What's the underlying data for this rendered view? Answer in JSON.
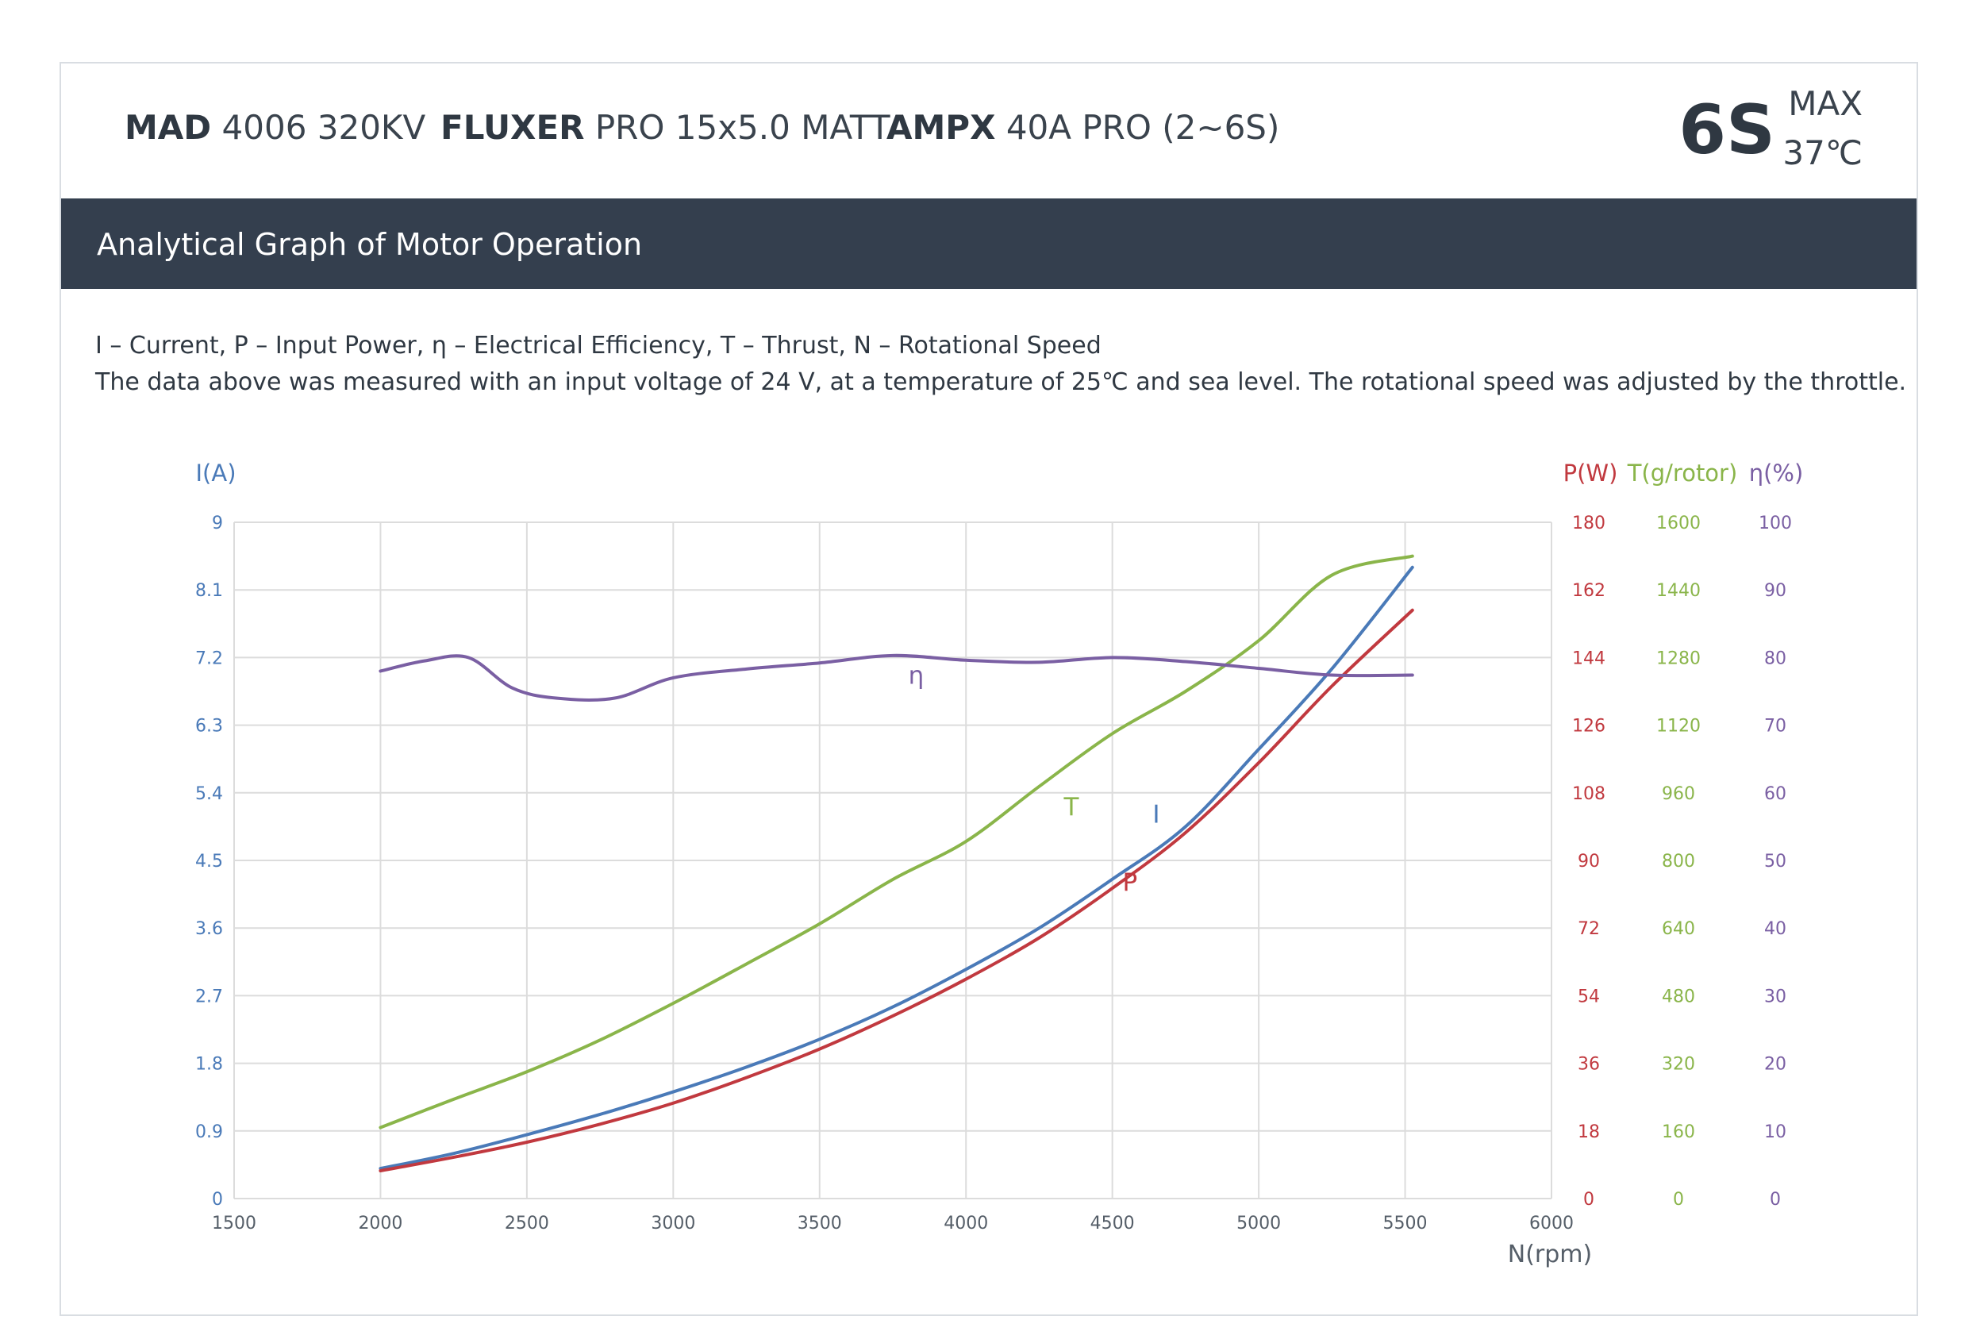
{
  "header": {
    "items": [
      {
        "brand": "MAD",
        "model": "4006 320KV"
      },
      {
        "brand": "FLUXER",
        "model": "PRO 15x5.0 MATT"
      },
      {
        "brand": "AMPX",
        "model": "40A PRO (2~6S)"
      }
    ],
    "cells": "6S",
    "max_label": "MAX",
    "max_value": "37℃"
  },
  "band": {
    "title": "Analytical Graph of Motor Operation"
  },
  "description": {
    "line1": "I – Current, P – Input Power, η – Electrical Efficiency, T – Thrust,   N – Rotational Speed",
    "line2": "The data above was measured with an input voltage of 24 V, at a temperature of 25℃ and sea level. The rotational speed was adjusted by the throttle."
  },
  "colors": {
    "current": "#4a7ab8",
    "power": "#c1393f",
    "thrust": "#8ab54a",
    "efficiency": "#7a5fa3",
    "grid": "#dcdcdc",
    "axis_text": "#555e68"
  },
  "chart_data": {
    "type": "line",
    "xlabel": "N(rpm)",
    "xlim": [
      1500,
      6000
    ],
    "x_ticks": [
      "1500",
      "2000",
      "2500",
      "3000",
      "3500",
      "4000",
      "4500",
      "5000",
      "5500",
      "6000"
    ],
    "grid": true,
    "axes": {
      "left": {
        "label": "I(A)",
        "ticks": [
          "0",
          "0.9",
          "1.8",
          "2.7",
          "3.6",
          "4.5",
          "5.4",
          "6.3",
          "7.2",
          "8.1",
          "9"
        ],
        "range": [
          0,
          9
        ]
      },
      "power": {
        "label": "P(W)",
        "ticks": [
          "0",
          "18",
          "36",
          "54",
          "72",
          "90",
          "108",
          "126",
          "144",
          "162",
          "180"
        ],
        "range": [
          0,
          180
        ]
      },
      "thrust": {
        "label": "T(g/rotor)",
        "ticks": [
          "0",
          "160",
          "320",
          "480",
          "640",
          "800",
          "960",
          "1120",
          "1280",
          "1440",
          "1600"
        ],
        "range": [
          0,
          1600
        ]
      },
      "eff": {
        "label": "η(%)",
        "ticks": [
          "0",
          "10",
          "20",
          "30",
          "40",
          "50",
          "60",
          "70",
          "80",
          "90",
          "100"
        ],
        "range": [
          0,
          100
        ]
      }
    },
    "series": [
      {
        "name": "I",
        "axis": "left",
        "label_at": [
          4650,
          5.0
        ],
        "x": [
          2000,
          2250,
          2500,
          2750,
          3000,
          3250,
          3500,
          3750,
          4000,
          4250,
          4500,
          4750,
          5000,
          5250,
          5525
        ],
        "y": [
          0.4,
          0.6,
          0.85,
          1.12,
          1.42,
          1.75,
          2.12,
          2.55,
          3.05,
          3.6,
          4.25,
          4.95,
          5.98,
          7.05,
          8.4
        ]
      },
      {
        "name": "P",
        "axis": "power",
        "label_at": [
          4560,
          4.1
        ],
        "x": [
          2000,
          2250,
          2500,
          2750,
          3000,
          3250,
          3500,
          3750,
          4000,
          4250,
          4500,
          4750,
          5000,
          5250,
          5525
        ],
        "y": [
          7.4,
          11,
          15,
          19.8,
          25.4,
          32.2,
          39.8,
          48.6,
          58.4,
          69.4,
          82.6,
          97.4,
          116,
          136.4,
          156.6
        ]
      },
      {
        "name": "T",
        "axis": "thrust",
        "label_at": [
          4360,
          5.1
        ],
        "x": [
          2000,
          2250,
          2500,
          2750,
          3000,
          3250,
          3500,
          3750,
          4000,
          4250,
          4500,
          4750,
          5000,
          5250,
          5525
        ],
        "y": [
          168,
          235,
          300,
          375,
          462,
          555,
          650,
          755,
          845,
          975,
          1100,
          1200,
          1320,
          1475,
          1520
        ]
      },
      {
        "name": "η",
        "axis": "eff",
        "label_at": [
          3830,
          6.85
        ],
        "x": [
          2000,
          2150,
          2300,
          2450,
          2600,
          2800,
          3000,
          3250,
          3500,
          3750,
          4000,
          4250,
          4500,
          4750,
          5000,
          5250,
          5525
        ],
        "y": [
          78,
          79.5,
          80,
          75.5,
          74,
          74,
          77,
          78.3,
          79.2,
          80.3,
          79.6,
          79.3,
          80,
          79.4,
          78.4,
          77.4,
          77.4
        ]
      }
    ]
  }
}
